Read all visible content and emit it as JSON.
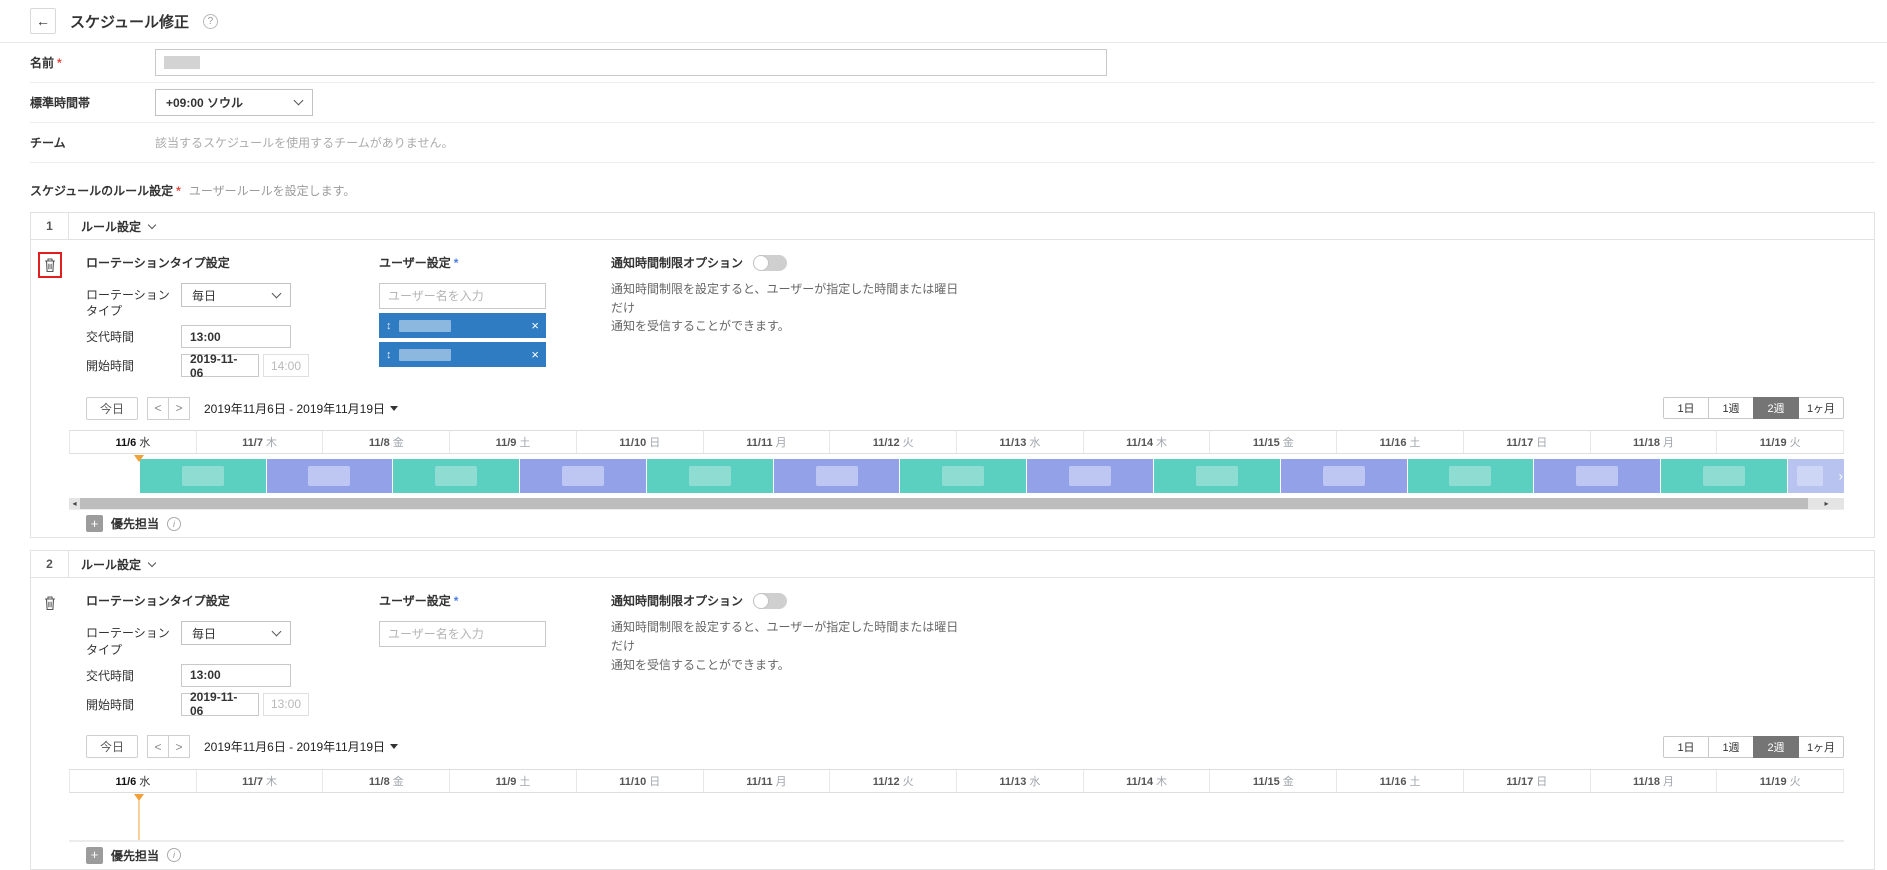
{
  "header": {
    "title": "スケジュール修正"
  },
  "icons": {
    "back": "←",
    "help": "?",
    "prev": "<",
    "next": ">",
    "drag": "↕",
    "close": "×",
    "plus": "+",
    "info": "i",
    "scroll_left": "◂",
    "scroll_right": "▸",
    "more": "›"
  },
  "colors": {
    "chip_blue": "#2F7CC3",
    "bar_teal": "#5BCFC0",
    "bar_purple": "#93A2E8",
    "bar_purple_cut": "#B9C3F0",
    "today_orange": "#F2A139",
    "active_view_bg": "#757575",
    "required_red": "#E8463C",
    "required_blue": "#4A7CE8",
    "trash_highlight_red": "#E02020"
  },
  "required_mark": "*",
  "form": {
    "name_label": "名前",
    "timezone_label": "標準時間帯",
    "timezone_value": "+09:00 ソウル",
    "team_label": "チーム",
    "team_empty": "該当するスケジュールを使用するチームがありません。",
    "section_label": "スケジュールのルール設定",
    "section_desc": "ユーザールールを設定します。"
  },
  "calendar_days": [
    {
      "date": "11/6",
      "dow": "水",
      "today": true
    },
    {
      "date": "11/7",
      "dow": "木"
    },
    {
      "date": "11/8",
      "dow": "金"
    },
    {
      "date": "11/9",
      "dow": "土"
    },
    {
      "date": "11/10",
      "dow": "日"
    },
    {
      "date": "11/11",
      "dow": "月"
    },
    {
      "date": "11/12",
      "dow": "火"
    },
    {
      "date": "11/13",
      "dow": "水"
    },
    {
      "date": "11/14",
      "dow": "木"
    },
    {
      "date": "11/15",
      "dow": "金"
    },
    {
      "date": "11/16",
      "dow": "土"
    },
    {
      "date": "11/17",
      "dow": "日"
    },
    {
      "date": "11/18",
      "dow": "月"
    },
    {
      "date": "11/19",
      "dow": "火"
    }
  ],
  "timeline": {
    "total_days": 14,
    "start_offset_days": 0.55,
    "shift_length_days": 1,
    "bars": [
      {
        "color": "teal",
        "label_redacted": true
      },
      {
        "color": "purple",
        "label_redacted": true
      },
      {
        "color": "teal",
        "label_redacted": true
      },
      {
        "color": "purple",
        "label_redacted": true
      },
      {
        "color": "teal",
        "label_redacted": true
      },
      {
        "color": "purple",
        "label_redacted": true
      },
      {
        "color": "teal",
        "label_redacted": true
      },
      {
        "color": "purple",
        "label_redacted": true
      },
      {
        "color": "teal",
        "label_redacted": true
      },
      {
        "color": "purple",
        "label_redacted": true
      },
      {
        "color": "teal",
        "label_redacted": true
      },
      {
        "color": "purple",
        "label_redacted": true
      },
      {
        "color": "teal",
        "label_redacted": true
      },
      {
        "color": "purple",
        "label_redacted": true,
        "cut": true
      }
    ]
  },
  "rule_blocks": [
    {
      "index": "1",
      "header_label": "ルール設定",
      "trash_highlighted": true,
      "rotation": {
        "title": "ローテーションタイプ設定",
        "type_label": "ローテーションタイプ",
        "type_value": "毎日",
        "shift_label": "交代時間",
        "shift_value": "13:00",
        "start_label": "開始時間",
        "start_date": "2019-11-06",
        "start_time": "14:00"
      },
      "users": {
        "label": "ユーザー設定",
        "placeholder": "ユーザー名を入力",
        "chips": [
          {
            "name_redacted": true
          },
          {
            "name_redacted": true
          }
        ]
      },
      "notify": {
        "label": "通知時間制限オプション",
        "toggle_on": false,
        "desc": "通知時間制限を設定すると、ユーザーが指定した時間または曜日\nだけ\n通知を受信することができます。"
      },
      "toolbar": {
        "today": "今日",
        "range": "2019年11月6日 - 2019年11月19日",
        "views": [
          "1日",
          "1週",
          "2週",
          "1ヶ月"
        ],
        "active_view": "2週"
      },
      "timeline": {
        "has_bars": true,
        "has_scrollbar": true
      },
      "footer": {
        "add_label": "優先担当"
      }
    },
    {
      "index": "2",
      "header_label": "ルール設定",
      "trash_highlighted": false,
      "rotation": {
        "title": "ローテーションタイプ設定",
        "type_label": "ローテーションタイプ",
        "type_value": "毎日",
        "shift_label": "交代時間",
        "shift_value": "13:00",
        "start_label": "開始時間",
        "start_date": "2019-11-06",
        "start_time": "13:00"
      },
      "users": {
        "label": "ユーザー設定",
        "placeholder": "ユーザー名を入力",
        "chips": []
      },
      "notify": {
        "label": "通知時間制限オプション",
        "toggle_on": false,
        "desc": "通知時間制限を設定すると、ユーザーが指定した時間または曜日\nだけ\n通知を受信することができます。"
      },
      "toolbar": {
        "today": "今日",
        "range": "2019年11月6日 - 2019年11月19日",
        "views": [
          "1日",
          "1週",
          "2週",
          "1ヶ月"
        ],
        "active_view": "2週"
      },
      "timeline": {
        "has_bars": false,
        "has_scrollbar": false
      },
      "footer": {
        "add_label": "優先担当"
      }
    }
  ]
}
